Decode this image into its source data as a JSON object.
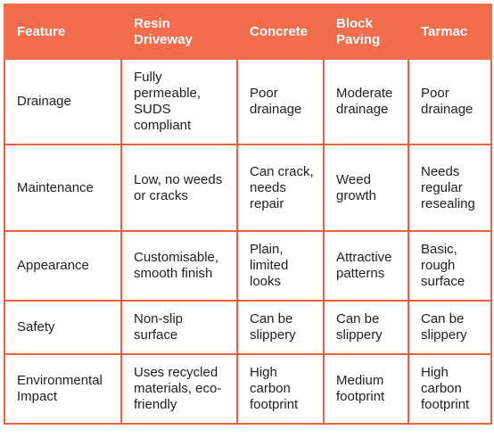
{
  "table": {
    "headers": [
      "Feature",
      "Resin Driveway",
      "Concrete",
      "Block Paving",
      "Tarmac"
    ],
    "rows": [
      [
        "Drainage",
        "Fully permeable, SUDS compliant",
        "Poor drainage",
        "Moderate drainage",
        "Poor drainage"
      ],
      [
        "Maintenance",
        "Low, no weeds or cracks",
        "Can crack, needs repair",
        "Weed growth",
        "Needs regular resealing"
      ],
      [
        "Appearance",
        "Customisable, smooth finish",
        "Plain, limited looks",
        "Attractive patterns",
        "Basic, rough surface"
      ],
      [
        "Safety",
        "Non-slip surface",
        "Can be slippery",
        "Can be slippery",
        "Can be slippery"
      ],
      [
        "Environmental Impact",
        "Uses recycled materials, eco-friendly",
        "High carbon footprint",
        "Medium footprint",
        "High carbon footprint"
      ]
    ]
  },
  "colors": {
    "header_bg": "#f36c4b",
    "border": "#f05f3e",
    "header_text": "#ffffff",
    "body_text": "#1f1f1f"
  }
}
